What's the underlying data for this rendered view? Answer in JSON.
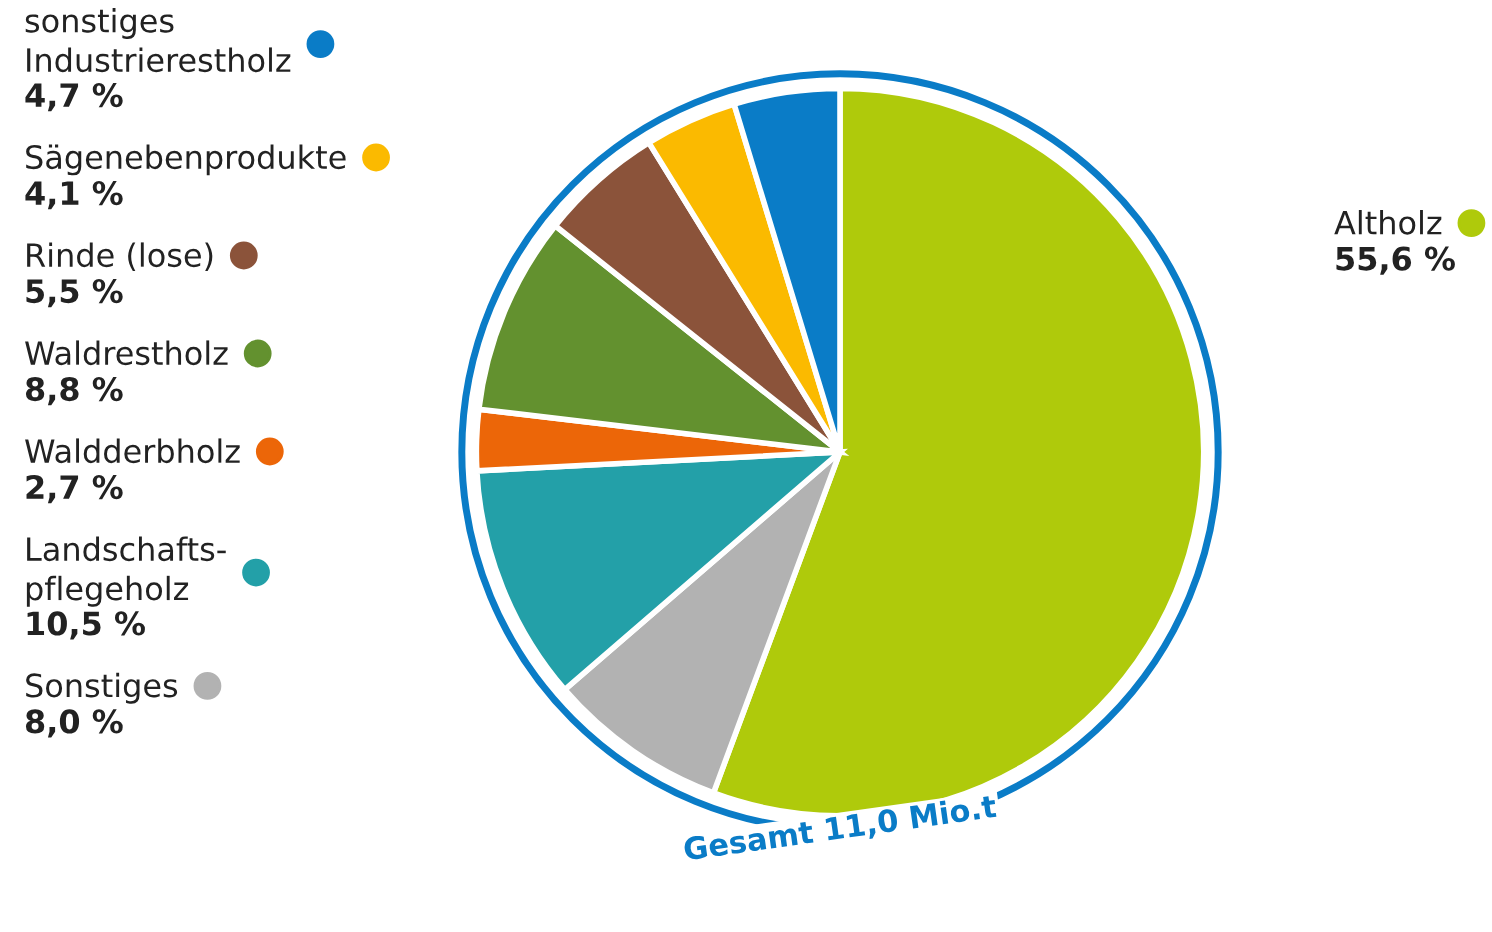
{
  "chart_data": {
    "type": "pie",
    "categories": [
      "Altholz",
      "Sonstiges",
      "Landschafts-\npflegeholz",
      "Waldderbholz",
      "Waldrestholz",
      "Rinde (lose)",
      "Sägenebenprodukte",
      "sonstiges\nIndustrierestholz"
    ],
    "values": [
      55.6,
      8.0,
      10.5,
      2.7,
      8.8,
      5.5,
      4.1,
      4.7
    ],
    "value_labels": [
      "55,6 %",
      "8,0 %",
      "10,5 %",
      "2,7 %",
      "8,8 %",
      "5,5 %",
      "4,1 %",
      "4,7 %"
    ],
    "colors": [
      "#afca0b",
      "#b2b2b2",
      "#23a0a8",
      "#ec6608",
      "#63912f",
      "#8b533a",
      "#fbba00",
      "#0a7cc7"
    ],
    "annotations": [
      "Gesamt 11,0 Mio.t"
    ],
    "legend": "left"
  }
}
